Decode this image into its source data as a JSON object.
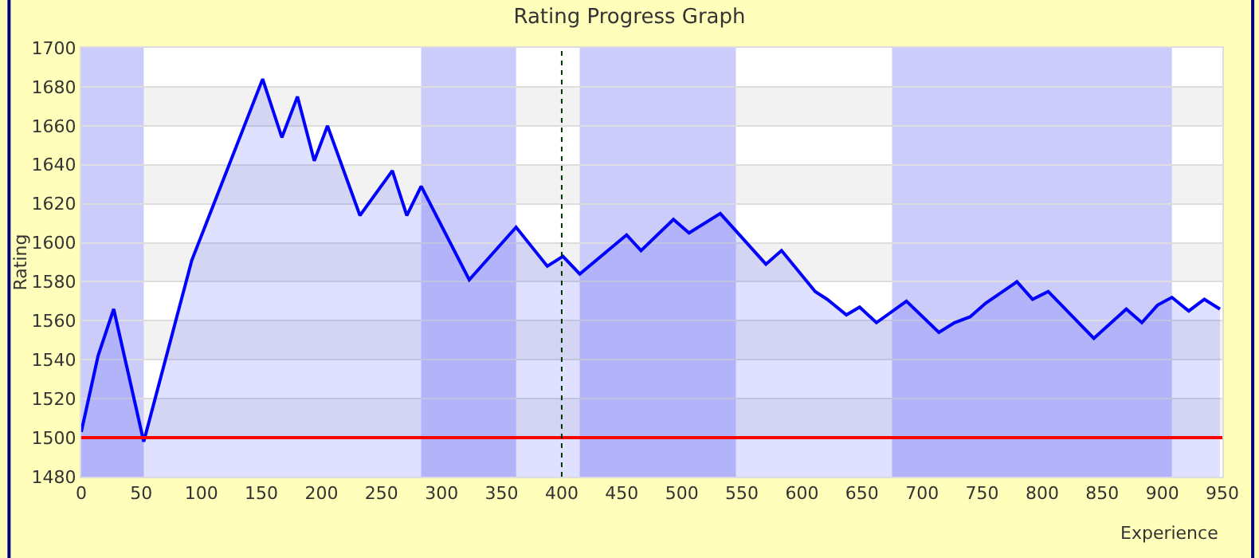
{
  "chart_data": {
    "type": "area",
    "title": "Rating Progress Graph",
    "xlabel": "Experience",
    "ylabel": "Rating",
    "x": [
      0,
      14,
      27,
      52,
      92,
      151,
      167,
      180,
      194,
      205,
      232,
      259,
      271,
      283,
      323,
      362,
      388,
      401,
      415,
      454,
      466,
      493,
      506,
      532,
      570,
      583,
      611,
      621,
      637,
      648,
      662,
      687,
      714,
      727,
      740,
      753,
      779,
      792,
      805,
      843,
      870,
      883,
      896,
      908,
      922,
      935,
      948
    ],
    "series": [
      {
        "color": "#0000ff",
        "values": [
          1503,
          1542,
          1566,
          1498,
          1591,
          1684,
          1654,
          1675,
          1642,
          1660,
          1614,
          1637,
          1614,
          1629,
          1581,
          1608,
          1588,
          1593,
          1584,
          1604,
          1596,
          1612,
          1605,
          1615,
          1589,
          1596,
          1575,
          1571,
          1563,
          1567,
          1559,
          1570,
          1554,
          1559,
          1562,
          1569,
          1580,
          1571,
          1575,
          1551,
          1566,
          1559,
          1568,
          1572,
          1565,
          1571,
          1566
        ]
      }
    ],
    "xlim": [
      0,
      950
    ],
    "xticks": [
      0,
      50,
      100,
      150,
      200,
      250,
      300,
      350,
      400,
      450,
      500,
      550,
      600,
      650,
      700,
      750,
      800,
      850,
      900,
      950
    ],
    "ylim": [
      1480,
      1700
    ],
    "yticks": [
      1480,
      1500,
      1520,
      1540,
      1560,
      1580,
      1600,
      1620,
      1640,
      1660,
      1680,
      1700
    ],
    "grid": "y",
    "marker": "none",
    "line_style": "solid",
    "ref_lines": [
      {
        "axis": "y",
        "value": 1500,
        "color": "#ff0000",
        "line_style": "solid"
      },
      {
        "axis": "x",
        "value": 400,
        "color": "#003300",
        "line_style": "dotted"
      }
    ],
    "bands": [
      {
        "axis": "x",
        "from": 0,
        "to": 52,
        "color": "#ccccfa"
      },
      {
        "axis": "x",
        "from": 283,
        "to": 362,
        "color": "#ccccfa"
      },
      {
        "axis": "x",
        "from": 415,
        "to": 545,
        "color": "#ccccfa"
      },
      {
        "axis": "x",
        "from": 675,
        "to": 908,
        "color": "#ccccfa"
      }
    ]
  }
}
